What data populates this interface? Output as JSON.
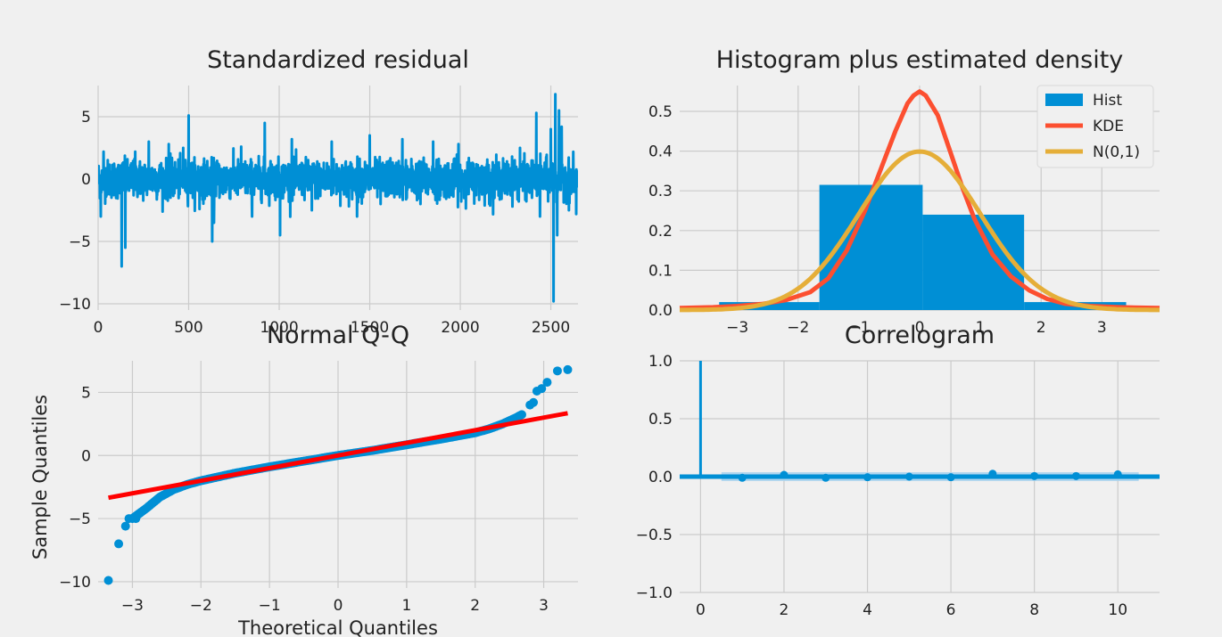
{
  "colors": {
    "background": "#f0f0f0",
    "grid": "#cbcbcb",
    "blue": "#008fd5",
    "red_orange": "#fc4f30",
    "gold": "#e5ae38",
    "red": "#ff0000",
    "ci_band": "#a9d3ee"
  },
  "chart_data": [
    {
      "id": "residual",
      "type": "line",
      "title": "Standardized residual",
      "xlabel": "",
      "ylabel": "",
      "xlim": [
        0,
        2650
      ],
      "ylim": [
        -10.5,
        7.5
      ],
      "xticks": [
        0,
        500,
        1000,
        1500,
        2000,
        2500
      ],
      "yticks": [
        -10,
        -5,
        0,
        5
      ],
      "grid": true,
      "n_points": 2650,
      "spikes": [
        {
          "x": 15,
          "y": -3.0
        },
        {
          "x": 30,
          "y": 2.2
        },
        {
          "x": 130,
          "y": -7.0
        },
        {
          "x": 150,
          "y": -5.5
        },
        {
          "x": 205,
          "y": 2.2
        },
        {
          "x": 280,
          "y": 3.0
        },
        {
          "x": 390,
          "y": 2.8
        },
        {
          "x": 470,
          "y": 2.5
        },
        {
          "x": 500,
          "y": 5.1
        },
        {
          "x": 560,
          "y": -2.4
        },
        {
          "x": 630,
          "y": -5.0
        },
        {
          "x": 640,
          "y": -3.5
        },
        {
          "x": 790,
          "y": 2.6
        },
        {
          "x": 850,
          "y": -3.0
        },
        {
          "x": 920,
          "y": 4.5
        },
        {
          "x": 1005,
          "y": -4.5
        },
        {
          "x": 1070,
          "y": 3.2
        },
        {
          "x": 1180,
          "y": -2.5
        },
        {
          "x": 1290,
          "y": 3.0
        },
        {
          "x": 1430,
          "y": -3.0
        },
        {
          "x": 1500,
          "y": 3.5
        },
        {
          "x": 1560,
          "y": -2.0
        },
        {
          "x": 1680,
          "y": 3.2
        },
        {
          "x": 1780,
          "y": -2.0
        },
        {
          "x": 1850,
          "y": 3.0
        },
        {
          "x": 1990,
          "y": 2.8
        },
        {
          "x": 2160,
          "y": -2.0
        },
        {
          "x": 2330,
          "y": 2.5
        },
        {
          "x": 2420,
          "y": 5.3
        },
        {
          "x": 2440,
          "y": -3.0
        },
        {
          "x": 2500,
          "y": 4.0
        },
        {
          "x": 2515,
          "y": -9.8
        },
        {
          "x": 2525,
          "y": 6.8
        },
        {
          "x": 2535,
          "y": -4.5
        },
        {
          "x": 2545,
          "y": 5.5
        },
        {
          "x": 2560,
          "y": 4.2
        },
        {
          "x": 2600,
          "y": -2.5
        },
        {
          "x": 2640,
          "y": -2.8
        }
      ]
    },
    {
      "id": "histogram",
      "type": "bar",
      "title": "Histogram plus estimated density",
      "xlim": [
        -3.95,
        3.95
      ],
      "ylim": [
        0,
        0.565
      ],
      "xticks": [
        -3,
        -2,
        -1,
        0,
        1,
        2,
        3
      ],
      "yticks": [
        0.0,
        0.1,
        0.2,
        0.3,
        0.4,
        0.5
      ],
      "grid": true,
      "legend_position": "upper-right",
      "legend": [
        "Hist",
        "KDE",
        "N(0,1)"
      ],
      "bins": [
        {
          "from": -3.3,
          "to": -1.65,
          "value": 0.02
        },
        {
          "from": -1.65,
          "to": 0.05,
          "value": 0.315
        },
        {
          "from": 0.05,
          "to": 1.72,
          "value": 0.24
        },
        {
          "from": 1.72,
          "to": 3.4,
          "value": 0.02
        }
      ],
      "kde": {
        "x": [
          -3.95,
          -3.4,
          -3.0,
          -2.6,
          -2.2,
          -1.8,
          -1.5,
          -1.2,
          -0.9,
          -0.6,
          -0.4,
          -0.2,
          -0.1,
          0.0,
          0.1,
          0.3,
          0.5,
          0.7,
          0.9,
          1.2,
          1.5,
          1.8,
          2.1,
          2.4,
          2.8,
          3.3,
          3.95
        ],
        "y": [
          0.005,
          0.007,
          0.01,
          0.015,
          0.025,
          0.045,
          0.08,
          0.15,
          0.25,
          0.37,
          0.45,
          0.52,
          0.54,
          0.55,
          0.54,
          0.49,
          0.4,
          0.31,
          0.23,
          0.14,
          0.085,
          0.05,
          0.028,
          0.016,
          0.01,
          0.007,
          0.005
        ]
      },
      "normal_density": {
        "mean": 0,
        "sd": 1
      }
    },
    {
      "id": "qq",
      "type": "scatter",
      "title": "Normal Q-Q",
      "xlabel": "Theoretical Quantiles",
      "ylabel": "Sample Quantiles",
      "xlim": [
        -3.5,
        3.5
      ],
      "ylim": [
        -10.5,
        7.5
      ],
      "xticks": [
        -3,
        -2,
        -1,
        0,
        1,
        2,
        3
      ],
      "yticks": [
        -10,
        -5,
        0,
        5
      ],
      "grid": true,
      "reference_line": {
        "x": [
          -3.35,
          3.35
        ],
        "y": [
          -3.35,
          3.35
        ]
      },
      "sample_curve": {
        "x": [
          -3.0,
          -2.8,
          -2.6,
          -2.4,
          -2.2,
          -2.0,
          -1.5,
          -1.0,
          -0.5,
          0.0,
          0.5,
          1.0,
          1.5,
          2.0,
          2.2,
          2.4,
          2.6,
          2.7
        ],
        "y": [
          -5.0,
          -4.2,
          -3.3,
          -2.7,
          -2.3,
          -2.0,
          -1.4,
          -0.9,
          -0.45,
          0.0,
          0.4,
          0.85,
          1.3,
          1.8,
          2.1,
          2.5,
          3.0,
          3.3
        ]
      },
      "tail_points": [
        {
          "x": -3.35,
          "y": -9.9
        },
        {
          "x": -3.2,
          "y": -7.0
        },
        {
          "x": -3.1,
          "y": -5.6
        },
        {
          "x": -3.05,
          "y": -5.0
        },
        {
          "x": -2.95,
          "y": -5.0
        },
        {
          "x": 2.8,
          "y": 4.0
        },
        {
          "x": 2.85,
          "y": 4.2
        },
        {
          "x": 2.9,
          "y": 5.1
        },
        {
          "x": 2.97,
          "y": 5.3
        },
        {
          "x": 3.05,
          "y": 5.8
        },
        {
          "x": 3.2,
          "y": 6.7
        },
        {
          "x": 3.35,
          "y": 6.8
        }
      ]
    },
    {
      "id": "correlogram",
      "type": "scatter",
      "title": "Correlogram",
      "xlim": [
        -0.5,
        11
      ],
      "ylim": [
        -1.0,
        1.0
      ],
      "xticks": [
        0,
        2,
        4,
        6,
        8,
        10
      ],
      "yticks": [
        -1.0,
        -0.5,
        0.0,
        0.5,
        1.0
      ],
      "ytick_labels": [
        "−1.0",
        "−0.5",
        "0.0",
        "0.5",
        "1.0"
      ],
      "grid": true,
      "lags": [
        0,
        1,
        2,
        3,
        4,
        5,
        6,
        7,
        8,
        9,
        10
      ],
      "acf": [
        1.0,
        -0.01,
        0.015,
        -0.01,
        -0.005,
        0.0,
        -0.005,
        0.025,
        0.005,
        0.005,
        0.02
      ],
      "confidence_band": [
        -0.038,
        0.038
      ]
    }
  ]
}
